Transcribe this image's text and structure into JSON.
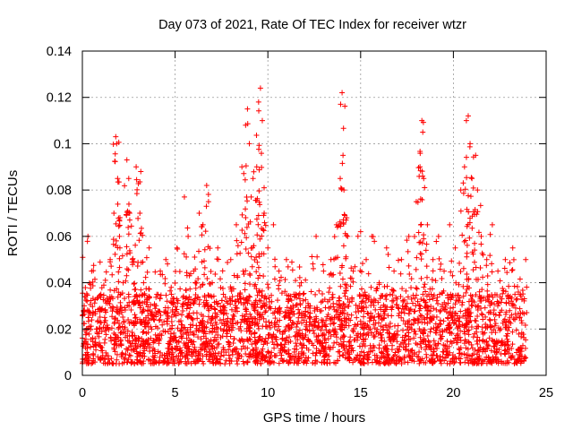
{
  "chart_data": {
    "type": "scatter",
    "title": "Day 073 of 2021, Rate Of TEC Index for receiver wtzr",
    "xlabel": "GPS time / hours",
    "ylabel": "ROTI / TECUs",
    "xlim": [
      0,
      25
    ],
    "ylim": [
      0,
      0.14
    ],
    "xticks": [
      0,
      5,
      10,
      15,
      20,
      25
    ],
    "yticks": [
      0,
      0.02,
      0.04,
      0.06,
      0.08,
      0.1,
      0.12,
      0.14
    ],
    "xtick_labels": [
      "0",
      "5",
      "10",
      "15",
      "20",
      "25"
    ],
    "ytick_labels": [
      "0",
      "0.02",
      "0.04",
      "0.06",
      "0.08",
      "0.1",
      "0.12",
      "0.14"
    ],
    "grid": true,
    "marker": "+",
    "marker_color": "#ff0000",
    "series": [
      {
        "name": "ROTI",
        "x": [
          0.1,
          0.3,
          0.5,
          0.8,
          1.0,
          1.2,
          1.5,
          1.7,
          1.8,
          1.85,
          1.9,
          2.0,
          2.2,
          2.4,
          2.5,
          2.55,
          2.7,
          2.9,
          3.1,
          3.15,
          3.3,
          3.6,
          3.9,
          4.2,
          4.5,
          4.8,
          5.1,
          5.5,
          5.7,
          6.0,
          6.3,
          6.5,
          6.7,
          6.8,
          7.0,
          7.3,
          7.6,
          8.0,
          8.3,
          8.6,
          8.8,
          8.9,
          9.0,
          9.2,
          9.4,
          9.5,
          9.6,
          9.7,
          9.8,
          10.0,
          10.3,
          10.6,
          11.0,
          11.4,
          11.8,
          12.2,
          12.6,
          13.0,
          13.4,
          13.7,
          13.9,
          14.0,
          14.05,
          14.1,
          14.3,
          14.6,
          15.0,
          15.3,
          15.6,
          16.0,
          16.4,
          16.8,
          17.2,
          17.6,
          18.0,
          18.2,
          18.3,
          18.35,
          18.4,
          18.6,
          18.9,
          19.2,
          19.5,
          19.8,
          20.1,
          20.4,
          20.6,
          20.7,
          20.8,
          20.9,
          21.0,
          21.2,
          21.3,
          21.5,
          21.8,
          22.1,
          22.4,
          22.8,
          23.2,
          23.6,
          23.9
        ],
        "y": [
          0.03,
          0.06,
          0.045,
          0.02,
          0.035,
          0.025,
          0.05,
          0.07,
          0.103,
          0.1,
          0.085,
          0.06,
          0.04,
          0.093,
          0.085,
          0.07,
          0.05,
          0.09,
          0.07,
          0.088,
          0.04,
          0.055,
          0.03,
          0.045,
          0.05,
          0.035,
          0.055,
          0.077,
          0.06,
          0.045,
          0.07,
          0.065,
          0.082,
          0.075,
          0.04,
          0.055,
          0.035,
          0.05,
          0.065,
          0.09,
          0.108,
          0.115,
          0.1,
          0.085,
          0.09,
          0.118,
          0.124,
          0.11,
          0.07,
          0.055,
          0.065,
          0.045,
          0.05,
          0.035,
          0.04,
          0.03,
          0.06,
          0.045,
          0.05,
          0.065,
          0.085,
          0.122,
          0.095,
          0.08,
          0.06,
          0.045,
          0.062,
          0.05,
          0.06,
          0.04,
          0.055,
          0.045,
          0.05,
          0.06,
          0.075,
          0.09,
          0.11,
          0.105,
          0.085,
          0.065,
          0.05,
          0.06,
          0.045,
          0.065,
          0.055,
          0.08,
          0.09,
          0.11,
          0.112,
          0.1,
          0.085,
          0.095,
          0.08,
          0.06,
          0.05,
          0.065,
          0.045,
          0.05,
          0.055,
          0.035,
          0.05
        ]
      }
    ],
    "baseline_range": [
      0.005,
      0.035
    ]
  }
}
